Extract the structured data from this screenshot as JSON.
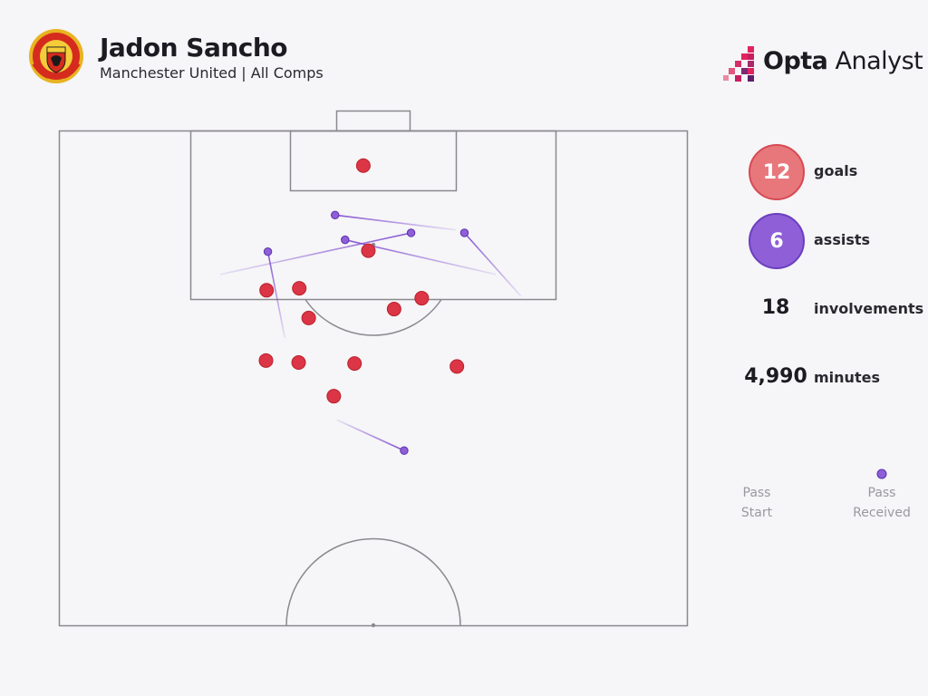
{
  "header": {
    "player_name": "Jadon Sancho",
    "subtitle": "Manchester United | All Comps"
  },
  "brand": {
    "name_bold": "Opta",
    "name_light": " Analyst"
  },
  "colors": {
    "goal": "#dc3545",
    "assist": "#7b4ad0",
    "pitch_line": "#8a898e",
    "background": "#f6f5f7"
  },
  "stats": {
    "goals": {
      "value": "12",
      "label": "goals"
    },
    "assists": {
      "value": "6",
      "label": "assists"
    },
    "involvements": {
      "value": "18",
      "label": "involvements"
    },
    "minutes": {
      "value": "4,990",
      "label": "minutes"
    }
  },
  "legend": {
    "start_label": "Pass\nStart",
    "end_label": "Pass\nReceived"
  },
  "chart_data": {
    "type": "scatter",
    "pitch": "half-pitch, attacking towards top goal",
    "series": [
      {
        "name": "goals",
        "points": [
          {
            "x": 48.4,
            "y": 96.5
          },
          {
            "x": 49.2,
            "y": 87.9
          },
          {
            "x": 39.7,
            "y": 81.1
          },
          {
            "x": 57.7,
            "y": 83.1
          },
          {
            "x": 53.3,
            "y": 82.0
          },
          {
            "x": 38.1,
            "y": 76.6
          },
          {
            "x": 38.2,
            "y": 84.1
          },
          {
            "x": 47.0,
            "y": 76.5
          },
          {
            "x": 63.3,
            "y": 76.2
          },
          {
            "x": 32.9,
            "y": 76.8
          },
          {
            "x": 33.0,
            "y": 83.9
          },
          {
            "x": 43.7,
            "y": 73.2
          }
        ]
      },
      {
        "name": "assists",
        "passes": [
          {
            "start": [
              73.5,
              83.3
            ],
            "end": [
              64.5,
              89.7
            ]
          },
          {
            "start": [
              63.1,
              90.0
            ],
            "end": [
              43.9,
              91.5
            ]
          },
          {
            "start": [
              69.5,
              85.5
            ],
            "end": [
              45.5,
              89.0
            ]
          },
          {
            "start": [
              25.6,
              85.5
            ],
            "end": [
              56.0,
              89.7
            ]
          },
          {
            "start": [
              35.9,
              79.1
            ],
            "end": [
              33.2,
              87.8
            ]
          },
          {
            "start": [
              44.2,
              70.8
            ],
            "end": [
              54.9,
              67.7
            ]
          }
        ]
      }
    ]
  }
}
